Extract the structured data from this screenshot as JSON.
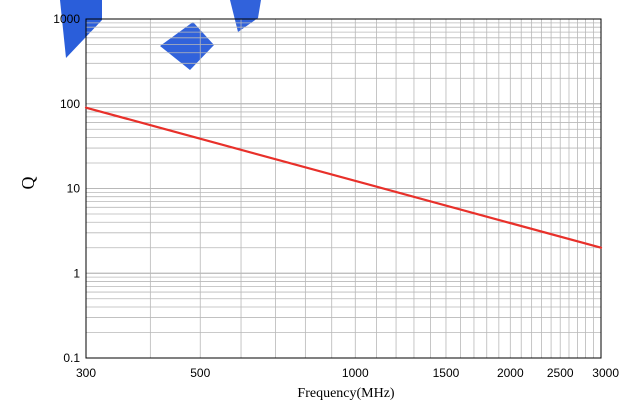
{
  "chart_data": {
    "type": "line",
    "xlabel": "Frequency(MHz)",
    "ylabel": "Q",
    "x_scale": "log",
    "y_scale": "log",
    "xlim": [
      300,
      3000
    ],
    "ylim": [
      0.1,
      1000
    ],
    "grid": true,
    "x_ticks": [
      "300",
      "500",
      "1000",
      "1500",
      "2000",
      "2500",
      "3000"
    ],
    "y_ticks": [
      "0.1",
      "1",
      "10",
      "100",
      "1000"
    ],
    "series": [
      {
        "color": "#e8302a",
        "x": [
          300,
          3000
        ],
        "y": [
          90,
          2
        ]
      }
    ]
  },
  "colors": {
    "grid": "#b8b8b8",
    "axis": "#000000",
    "watermark": "#1f55d8"
  }
}
